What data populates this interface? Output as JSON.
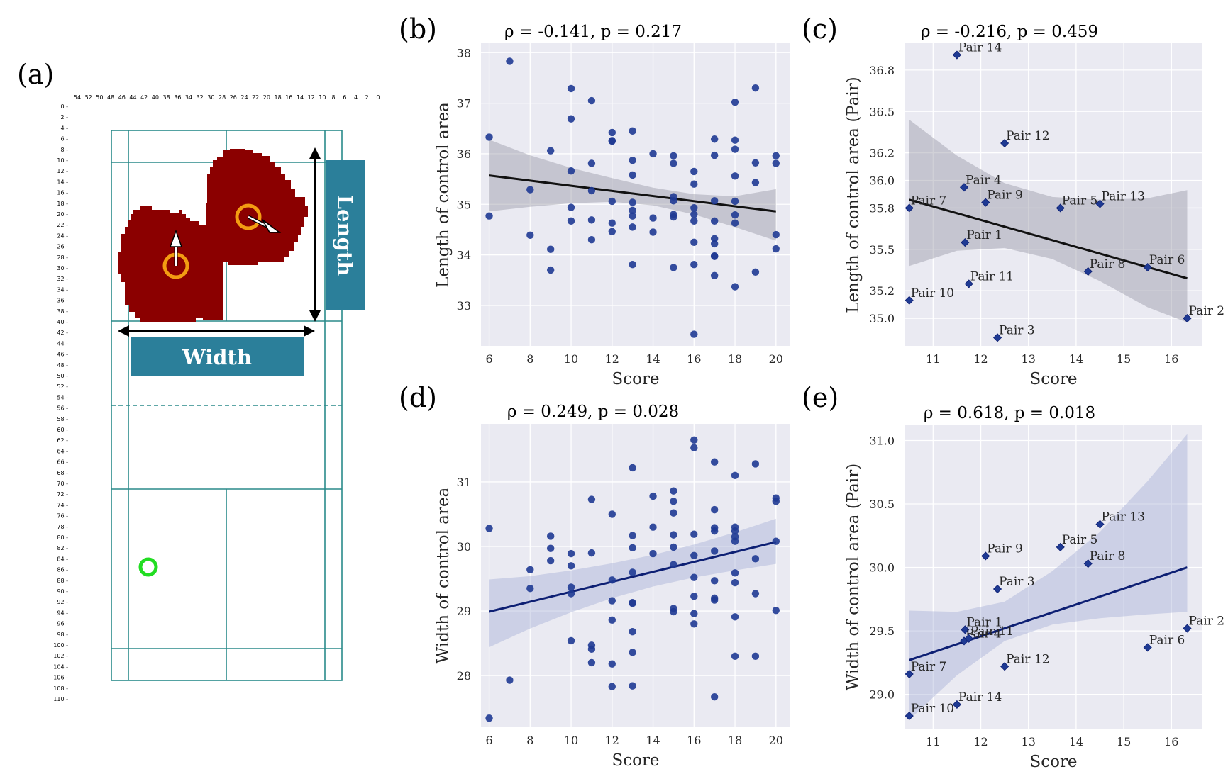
{
  "court": {
    "panel_label": "(a)",
    "width_label": "Width",
    "length_label": "Length",
    "top_ticks": [
      "54",
      "52",
      "50",
      "48",
      "46",
      "44",
      "42",
      "40",
      "38",
      "36",
      "34",
      "32",
      "30",
      "28",
      "26",
      "24",
      "22",
      "20",
      "18",
      "16",
      "14",
      "12",
      "10",
      "8",
      "6",
      "4",
      "2",
      "0"
    ],
    "left_ticks": [
      "0",
      "2",
      "4",
      "6",
      "8",
      "10",
      "12",
      "14",
      "16",
      "18",
      "20",
      "22",
      "24",
      "26",
      "28",
      "30",
      "32",
      "34",
      "36",
      "38",
      "40",
      "42",
      "44",
      "46",
      "48",
      "50",
      "52",
      "54",
      "56",
      "58",
      "60",
      "62",
      "64",
      "66",
      "68",
      "70",
      "72",
      "74",
      "76",
      "78",
      "80",
      "82",
      "84",
      "86",
      "88",
      "90",
      "92",
      "94",
      "96",
      "98",
      "100",
      "102",
      "104",
      "106",
      "108",
      "110"
    ],
    "colors": {
      "court_line": "#2a8a8a",
      "control_area": "#8b0000",
      "player_ring": "#f39c12",
      "shuttle_ring": "#22dd22",
      "label_box": "#2b7f9a"
    }
  },
  "chart_data": [
    {
      "id": "b",
      "panel_label": "(b)",
      "type": "scatter",
      "title": "ρ = -0.141, p = 0.217",
      "xlabel": "Score",
      "ylabel": "Length of control area",
      "xlim": [
        5.6,
        20.7
      ],
      "ylim": [
        32.2,
        38.2
      ],
      "xticks": [
        6,
        8,
        10,
        12,
        14,
        16,
        18,
        20
      ],
      "yticks": [
        33,
        34,
        35,
        36,
        37,
        38
      ],
      "grid": true,
      "point_color": "#1f3a93",
      "line_color": "#111111",
      "band_color": "#9a9aa6",
      "fit": {
        "x": [
          6,
          20
        ],
        "y": [
          35.57,
          34.86
        ]
      },
      "band": {
        "x": [
          6,
          8,
          10,
          12,
          14,
          16,
          18,
          20
        ],
        "lower": [
          34.86,
          34.95,
          35.02,
          35.05,
          34.98,
          34.8,
          34.55,
          34.28
        ],
        "upper": [
          36.28,
          35.97,
          35.72,
          35.52,
          35.33,
          35.2,
          35.16,
          35.3
        ]
      },
      "points": [
        [
          6,
          36.33
        ],
        [
          6,
          34.77
        ],
        [
          7,
          37.83
        ],
        [
          8,
          35.29
        ],
        [
          8,
          34.39
        ],
        [
          9,
          36.06
        ],
        [
          9,
          34.11
        ],
        [
          9,
          33.7
        ],
        [
          10,
          37.29
        ],
        [
          10,
          36.69
        ],
        [
          10,
          35.66
        ],
        [
          10,
          34.94
        ],
        [
          10,
          34.67
        ],
        [
          11,
          37.05
        ],
        [
          11,
          35.81
        ],
        [
          11,
          35.27
        ],
        [
          11,
          34.69
        ],
        [
          11,
          34.3
        ],
        [
          12,
          36.42
        ],
        [
          12,
          36.25
        ],
        [
          12,
          36.26
        ],
        [
          12,
          35.06
        ],
        [
          12,
          34.63
        ],
        [
          12,
          34.46
        ],
        [
          13,
          36.45
        ],
        [
          13,
          35.87
        ],
        [
          13,
          35.58
        ],
        [
          13,
          35.04
        ],
        [
          13,
          34.88
        ],
        [
          13,
          34.77
        ],
        [
          13,
          34.55
        ],
        [
          13,
          33.81
        ],
        [
          14,
          36.0
        ],
        [
          14,
          34.73
        ],
        [
          14,
          34.45
        ],
        [
          15,
          35.96
        ],
        [
          15,
          35.81
        ],
        [
          15,
          35.15
        ],
        [
          15,
          35.07
        ],
        [
          15,
          34.8
        ],
        [
          15,
          34.75
        ],
        [
          15,
          33.75
        ],
        [
          16,
          35.65
        ],
        [
          16,
          35.4
        ],
        [
          16,
          34.93
        ],
        [
          16,
          34.8
        ],
        [
          16,
          34.67
        ],
        [
          16,
          34.25
        ],
        [
          16,
          33.81
        ],
        [
          16,
          32.43
        ],
        [
          17,
          36.29
        ],
        [
          17,
          35.97
        ],
        [
          17,
          35.07
        ],
        [
          17,
          34.67
        ],
        [
          17,
          34.32
        ],
        [
          17,
          34.22
        ],
        [
          17,
          33.97
        ],
        [
          17,
          33.98
        ],
        [
          17,
          33.59
        ],
        [
          18,
          37.02
        ],
        [
          18,
          36.27
        ],
        [
          18,
          36.09
        ],
        [
          18,
          35.56
        ],
        [
          18,
          35.06
        ],
        [
          18,
          34.79
        ],
        [
          18,
          34.63
        ],
        [
          18,
          33.37
        ],
        [
          19,
          37.3
        ],
        [
          19,
          35.82
        ],
        [
          19,
          35.43
        ],
        [
          19,
          33.66
        ],
        [
          20,
          35.96
        ],
        [
          20,
          35.81
        ],
        [
          20,
          34.4
        ],
        [
          20,
          34.12
        ]
      ]
    },
    {
      "id": "c",
      "panel_label": "(c)",
      "type": "scatter",
      "title": "ρ = -0.216, p = 0.459",
      "xlabel": "Score",
      "ylabel": "Length of control area (Pair)",
      "xlim": [
        10.4,
        16.65
      ],
      "ylim": [
        34.8,
        37.0
      ],
      "xticks": [
        11,
        12,
        13,
        14,
        15,
        16
      ],
      "yticks": [
        35.0,
        35.2,
        35.5,
        35.8,
        36.0,
        36.2,
        36.5,
        36.8
      ],
      "ytick_labels": [
        "35.0",
        "35.2",
        "35.5",
        "35.8",
        "36.0",
        "36.2",
        "36.5",
        "36.8"
      ],
      "grid": true,
      "point_color": "#1f3a93",
      "line_color": "#111111",
      "band_color": "#9a9aa6",
      "fit": {
        "x": [
          10.5,
          16.33
        ],
        "y": [
          35.86,
          35.29
        ]
      },
      "band": {
        "x": [
          10.5,
          11.5,
          12.5,
          13.5,
          14.5,
          15.5,
          16.33
        ],
        "lower": [
          35.38,
          35.49,
          35.51,
          35.43,
          35.27,
          35.08,
          34.97
        ],
        "upper": [
          36.44,
          36.18,
          35.98,
          35.88,
          35.86,
          35.87,
          35.93
        ]
      },
      "points": [
        {
          "x": 11.5,
          "y": 36.91,
          "label": "Pair 14"
        },
        {
          "x": 12.5,
          "y": 36.27,
          "label": "Pair 12"
        },
        {
          "x": 11.65,
          "y": 35.95,
          "label": "Pair 4"
        },
        {
          "x": 12.1,
          "y": 35.84,
          "label": "Pair 9"
        },
        {
          "x": 10.5,
          "y": 35.8,
          "label": "Pair 7"
        },
        {
          "x": 13.67,
          "y": 35.8,
          "label": "Pair 5"
        },
        {
          "x": 14.5,
          "y": 35.83,
          "label": "Pair 13"
        },
        {
          "x": 11.67,
          "y": 35.55,
          "label": "Pair 1"
        },
        {
          "x": 14.25,
          "y": 35.34,
          "label": "Pair 8"
        },
        {
          "x": 15.5,
          "y": 35.37,
          "label": "Pair 6"
        },
        {
          "x": 11.75,
          "y": 35.25,
          "label": "Pair 11"
        },
        {
          "x": 10.5,
          "y": 35.13,
          "label": "Pair 10"
        },
        {
          "x": 16.33,
          "y": 35.0,
          "label": "Pair 2"
        },
        {
          "x": 12.35,
          "y": 34.86,
          "label": "Pair 3"
        }
      ]
    },
    {
      "id": "d",
      "panel_label": "(d)",
      "type": "scatter",
      "title": "ρ = 0.249, p = 0.028",
      "xlabel": "Score",
      "ylabel": "Width of control area",
      "xlim": [
        5.6,
        20.7
      ],
      "ylim": [
        27.2,
        31.9
      ],
      "xticks": [
        6,
        8,
        10,
        12,
        14,
        16,
        18,
        20
      ],
      "yticks": [
        28,
        29,
        30,
        31
      ],
      "grid": true,
      "point_color": "#1f3a93",
      "line_color": "#0d1f73",
      "band_color": "#a9b2d6",
      "fit": {
        "x": [
          6,
          20
        ],
        "y": [
          28.99,
          30.07
        ]
      },
      "band": {
        "x": [
          6,
          8,
          10,
          12,
          14,
          16,
          18,
          20
        ],
        "lower": [
          28.44,
          28.73,
          28.98,
          29.2,
          29.38,
          29.52,
          29.63,
          29.73
        ],
        "upper": [
          29.49,
          29.54,
          29.63,
          29.74,
          29.87,
          30.03,
          30.22,
          30.43
        ]
      },
      "points": [
        [
          6,
          30.28
        ],
        [
          6,
          27.34
        ],
        [
          7,
          27.93
        ],
        [
          8,
          29.64
        ],
        [
          8,
          29.35
        ],
        [
          9,
          30.16
        ],
        [
          9,
          29.97
        ],
        [
          9,
          29.78
        ],
        [
          10,
          29.89
        ],
        [
          10,
          29.7
        ],
        [
          10,
          29.37
        ],
        [
          10,
          29.27
        ],
        [
          10,
          28.54
        ],
        [
          11,
          30.73
        ],
        [
          11,
          29.9
        ],
        [
          11,
          28.47
        ],
        [
          11,
          28.41
        ],
        [
          11,
          28.2
        ],
        [
          12,
          30.5
        ],
        [
          12,
          29.48
        ],
        [
          12,
          29.16
        ],
        [
          12,
          28.86
        ],
        [
          12,
          28.18
        ],
        [
          12,
          27.83
        ],
        [
          13,
          31.22
        ],
        [
          13,
          30.17
        ],
        [
          13,
          29.98
        ],
        [
          13,
          29.6
        ],
        [
          13,
          29.13
        ],
        [
          13,
          29.12
        ],
        [
          13,
          28.68
        ],
        [
          13,
          28.36
        ],
        [
          13,
          27.84
        ],
        [
          14,
          30.78
        ],
        [
          14,
          30.3
        ],
        [
          14,
          29.89
        ],
        [
          15,
          30.86
        ],
        [
          15,
          30.7
        ],
        [
          15,
          30.52
        ],
        [
          15,
          30.18
        ],
        [
          15,
          29.99
        ],
        [
          15,
          29.72
        ],
        [
          15,
          29.04
        ],
        [
          15,
          28.99
        ],
        [
          16,
          31.65
        ],
        [
          16,
          31.53
        ],
        [
          16,
          30.19
        ],
        [
          16,
          29.86
        ],
        [
          16,
          29.52
        ],
        [
          16,
          29.23
        ],
        [
          16,
          28.96
        ],
        [
          16,
          28.8
        ],
        [
          17,
          31.31
        ],
        [
          17,
          30.57
        ],
        [
          17,
          30.29
        ],
        [
          17,
          30.24
        ],
        [
          17,
          29.93
        ],
        [
          17,
          29.47
        ],
        [
          17,
          29.2
        ],
        [
          17,
          29.17
        ],
        [
          17,
          27.67
        ],
        [
          18,
          31.1
        ],
        [
          18,
          30.3
        ],
        [
          18,
          30.24
        ],
        [
          18,
          30.15
        ],
        [
          18,
          30.08
        ],
        [
          18,
          29.59
        ],
        [
          18,
          29.44
        ],
        [
          18,
          28.91
        ],
        [
          18,
          28.3
        ],
        [
          19,
          31.28
        ],
        [
          19,
          29.81
        ],
        [
          19,
          29.27
        ],
        [
          19,
          28.3
        ],
        [
          20,
          30.75
        ],
        [
          20,
          30.7
        ],
        [
          20,
          30.08
        ],
        [
          20,
          29.01
        ]
      ]
    },
    {
      "id": "e",
      "panel_label": "(e)",
      "type": "scatter",
      "title": "ρ = 0.618, p = 0.018",
      "xlabel": "Score",
      "ylabel": "Width of control area (Pair)",
      "xlim": [
        10.4,
        16.65
      ],
      "ylim": [
        28.73,
        31.12
      ],
      "xticks": [
        11,
        12,
        13,
        14,
        15,
        16
      ],
      "yticks": [
        29.0,
        29.5,
        30.0,
        30.5,
        31.0
      ],
      "ytick_labels": [
        "29.0",
        "29.5",
        "30.0",
        "30.5",
        "31.0"
      ],
      "grid": true,
      "point_color": "#1f3a93",
      "line_color": "#0d1f73",
      "band_color": "#a9b2d6",
      "fit": {
        "x": [
          10.5,
          16.33
        ],
        "y": [
          29.27,
          30.0
        ]
      },
      "band": {
        "x": [
          10.5,
          11.5,
          12.5,
          13.5,
          14.5,
          15.5,
          16.33
        ],
        "lower": [
          28.8,
          29.15,
          29.42,
          29.55,
          29.6,
          29.63,
          29.65
        ],
        "upper": [
          29.66,
          29.65,
          29.73,
          29.97,
          30.28,
          30.68,
          31.05
        ]
      },
      "points": [
        {
          "x": 14.5,
          "y": 30.34,
          "label": "Pair 13"
        },
        {
          "x": 13.67,
          "y": 30.16,
          "label": "Pair 5"
        },
        {
          "x": 12.1,
          "y": 30.09,
          "label": "Pair 9"
        },
        {
          "x": 14.25,
          "y": 30.03,
          "label": "Pair 8"
        },
        {
          "x": 12.35,
          "y": 29.83,
          "label": "Pair 3"
        },
        {
          "x": 11.67,
          "y": 29.51,
          "label": "Pair 1"
        },
        {
          "x": 11.65,
          "y": 29.42,
          "label": "Pair 4"
        },
        {
          "x": 11.75,
          "y": 29.44,
          "label": "Pair 11"
        },
        {
          "x": 16.33,
          "y": 29.52,
          "label": "Pair 2"
        },
        {
          "x": 15.5,
          "y": 29.37,
          "label": "Pair 6"
        },
        {
          "x": 12.5,
          "y": 29.22,
          "label": "Pair 12"
        },
        {
          "x": 10.5,
          "y": 29.16,
          "label": "Pair 7"
        },
        {
          "x": 11.5,
          "y": 28.92,
          "label": "Pair 14"
        },
        {
          "x": 10.5,
          "y": 28.83,
          "label": "Pair 10"
        }
      ]
    }
  ]
}
